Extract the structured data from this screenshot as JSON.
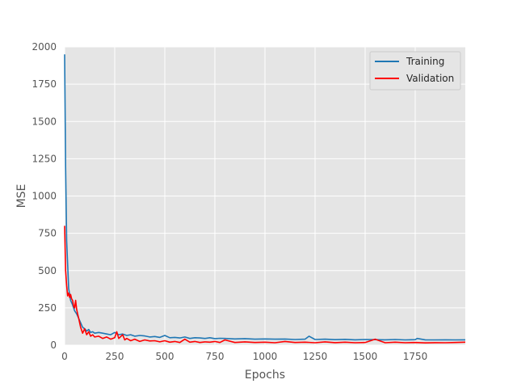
{
  "chart_data": {
    "type": "line",
    "title": "",
    "xlabel": "Epochs",
    "ylabel": "MSE",
    "xlim": [
      0,
      2000
    ],
    "ylim": [
      0,
      2000
    ],
    "xticks": [
      0,
      250,
      500,
      750,
      1000,
      1250,
      1500,
      1750
    ],
    "yticks": [
      0,
      250,
      500,
      750,
      1000,
      1250,
      1500,
      1750,
      2000
    ],
    "grid": true,
    "legend_position": "top-right",
    "series": [
      {
        "name": "Training",
        "color": "#1f77b4",
        "x": [
          0,
          5,
          10,
          20,
          30,
          40,
          50,
          60,
          70,
          80,
          90,
          100,
          110,
          120,
          130,
          140,
          150,
          170,
          190,
          210,
          230,
          250,
          270,
          290,
          310,
          330,
          350,
          375,
          400,
          425,
          450,
          475,
          500,
          525,
          550,
          575,
          600,
          625,
          650,
          675,
          700,
          725,
          750,
          775,
          800,
          850,
          900,
          950,
          1000,
          1050,
          1100,
          1150,
          1200,
          1220,
          1250,
          1300,
          1350,
          1400,
          1450,
          1500,
          1550,
          1600,
          1650,
          1700,
          1750,
          1760,
          1800,
          1850,
          1900,
          1950,
          2000
        ],
        "y": [
          1950,
          1200,
          700,
          380,
          300,
          270,
          230,
          210,
          180,
          150,
          120,
          110,
          95,
          105,
          85,
          90,
          80,
          85,
          80,
          75,
          70,
          85,
          70,
          75,
          65,
          70,
          60,
          65,
          62,
          55,
          58,
          52,
          65,
          50,
          52,
          48,
          55,
          45,
          50,
          48,
          45,
          50,
          44,
          46,
          45,
          42,
          44,
          40,
          42,
          40,
          41,
          38,
          40,
          60,
          38,
          40,
          37,
          39,
          36,
          38,
          37,
          36,
          38,
          35,
          37,
          45,
          36,
          35,
          36,
          35,
          36
        ]
      },
      {
        "name": "Validation",
        "color": "#ff0000",
        "x": [
          0,
          5,
          10,
          15,
          20,
          25,
          30,
          35,
          40,
          45,
          50,
          55,
          60,
          65,
          70,
          80,
          90,
          100,
          110,
          120,
          130,
          140,
          150,
          170,
          190,
          210,
          230,
          250,
          260,
          270,
          290,
          300,
          310,
          330,
          350,
          375,
          400,
          425,
          450,
          475,
          500,
          525,
          550,
          575,
          600,
          625,
          650,
          675,
          700,
          725,
          750,
          775,
          800,
          850,
          900,
          950,
          1000,
          1050,
          1100,
          1150,
          1200,
          1250,
          1300,
          1350,
          1400,
          1450,
          1500,
          1550,
          1600,
          1650,
          1700,
          1750,
          1800,
          1850,
          1900,
          1950,
          2000
        ],
        "y": [
          800,
          500,
          400,
          330,
          350,
          320,
          340,
          310,
          300,
          260,
          250,
          300,
          240,
          210,
          180,
          120,
          80,
          110,
          70,
          90,
          60,
          70,
          55,
          60,
          45,
          55,
          40,
          50,
          90,
          45,
          70,
          35,
          45,
          30,
          40,
          25,
          35,
          28,
          30,
          22,
          30,
          20,
          25,
          18,
          40,
          20,
          25,
          18,
          22,
          20,
          25,
          18,
          35,
          18,
          22,
          18,
          20,
          16,
          25,
          18,
          20,
          16,
          22,
          17,
          20,
          16,
          18,
          40,
          16,
          20,
          16,
          18,
          15,
          17,
          16,
          18,
          20
        ]
      }
    ]
  }
}
